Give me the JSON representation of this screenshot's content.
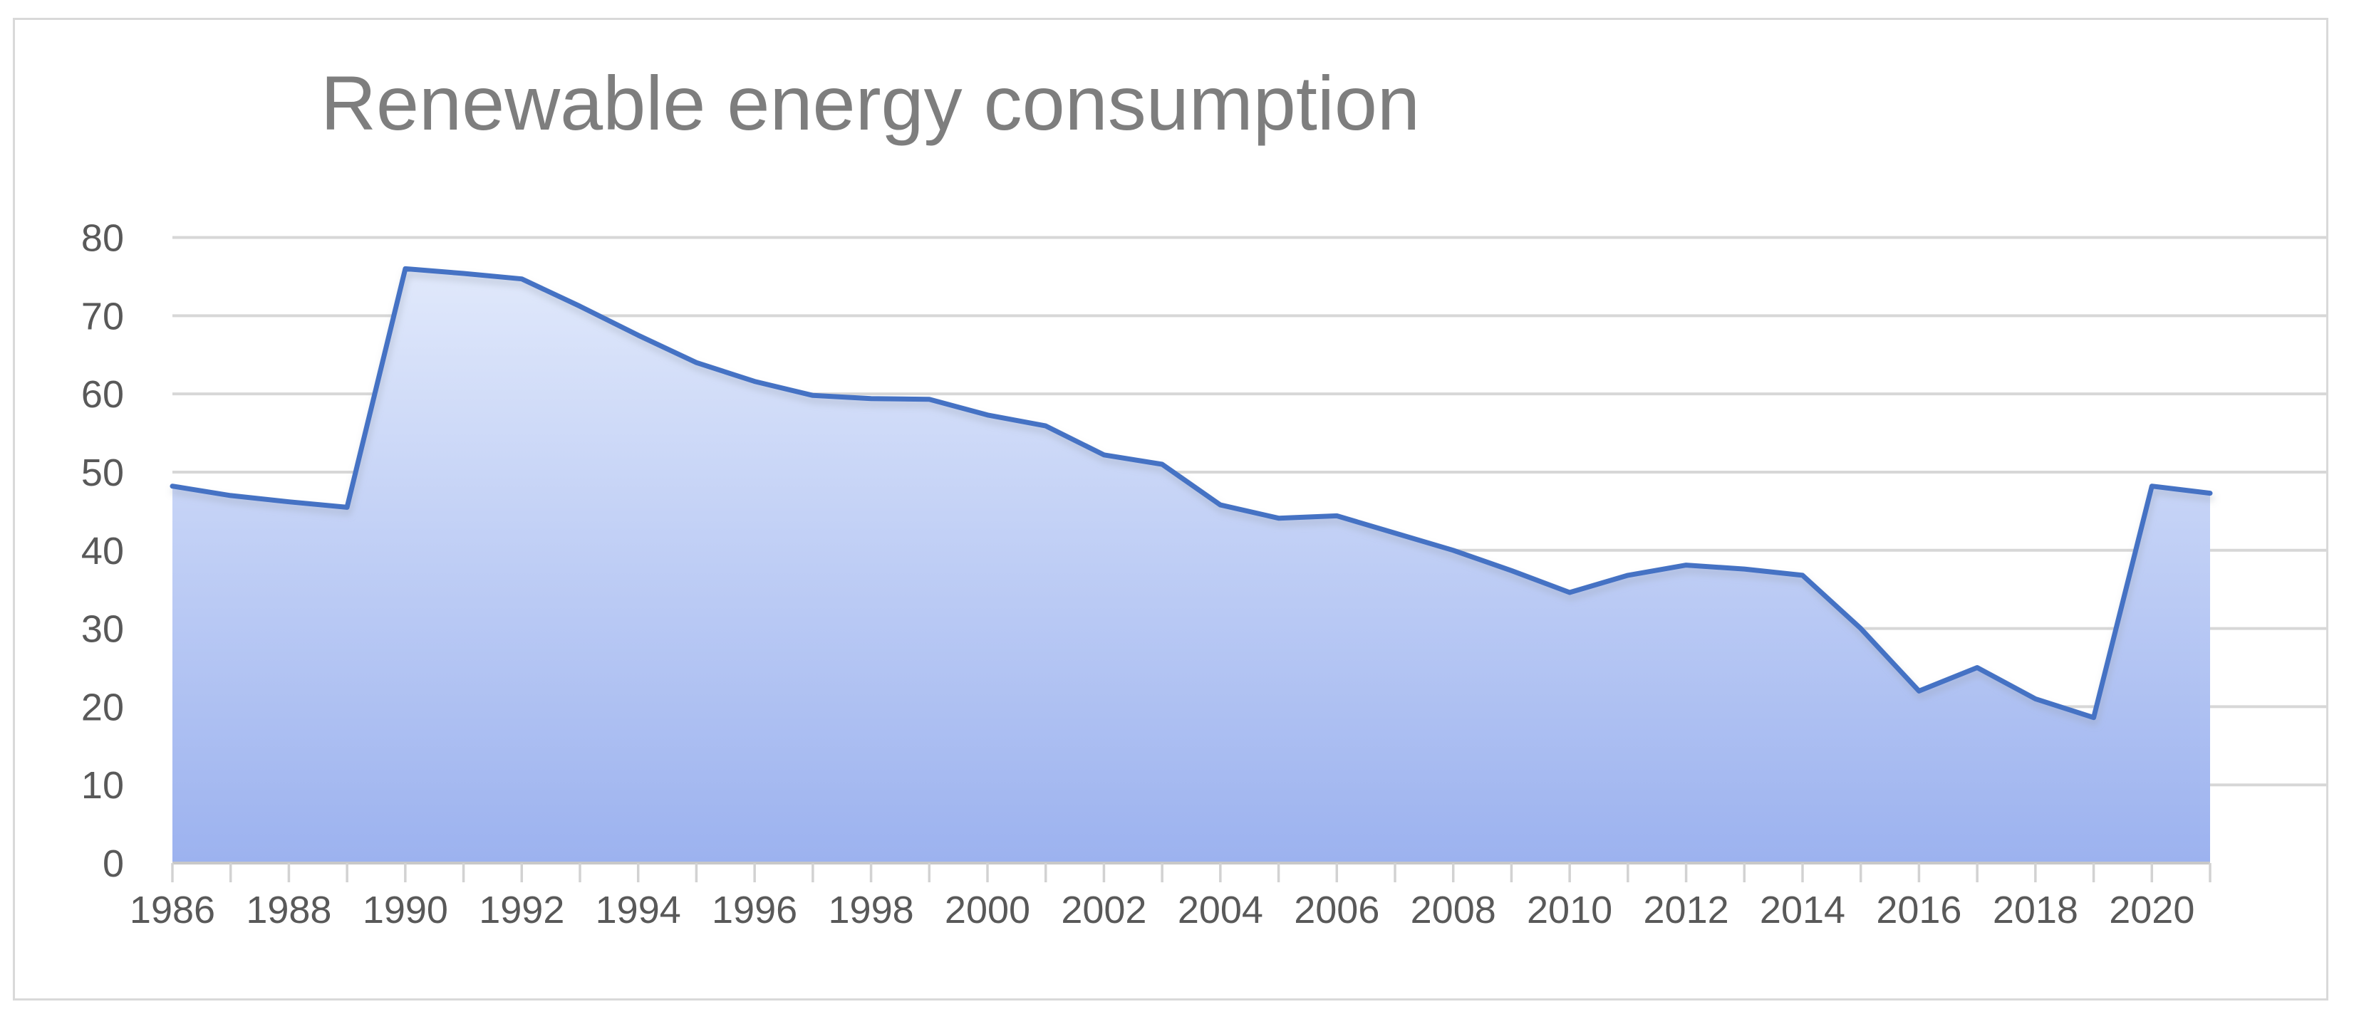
{
  "chart_data": {
    "type": "area",
    "title": "Renewable energy consumption",
    "x": [
      1986,
      1987,
      1988,
      1989,
      1990,
      1991,
      1992,
      1993,
      1994,
      1995,
      1996,
      1997,
      1998,
      1999,
      2000,
      2001,
      2002,
      2003,
      2004,
      2005,
      2006,
      2007,
      2008,
      2009,
      2010,
      2011,
      2012,
      2013,
      2014,
      2015,
      2016,
      2017,
      2018,
      2019,
      2020,
      2021
    ],
    "values": [
      48.2,
      47.0,
      46.2,
      45.5,
      76.0,
      75.4,
      74.7,
      71.2,
      67.5,
      64.0,
      61.6,
      59.8,
      59.4,
      59.3,
      57.3,
      55.9,
      52.2,
      51.0,
      45.8,
      44.1,
      44.4,
      42.2,
      40.0,
      37.4,
      34.6,
      36.8,
      38.1,
      37.6,
      36.8,
      30.0,
      22.0,
      25.0,
      21.0,
      18.6,
      48.2,
      47.3
    ],
    "xlabel": "",
    "ylabel": "",
    "ylim": [
      0,
      80
    ],
    "ytick_labels": [
      "0",
      "10",
      "20",
      "30",
      "40",
      "50",
      "60",
      "70",
      "80"
    ],
    "xtick_labels": [
      "1986",
      "1988",
      "1990",
      "1992",
      "1994",
      "1996",
      "1998",
      "2000",
      "2002",
      "2004",
      "2006",
      "2008",
      "2010",
      "2012",
      "2014",
      "2016",
      "2018",
      "2020"
    ],
    "grid": true,
    "legend_position": "none",
    "colors": {
      "line": "#4472C4",
      "area_top": "#e1e9fb",
      "area_bottom": "#9cb2ef",
      "gridline": "#d7d7d7",
      "axis_line": "#c8c8c8",
      "tick": "#d2d2d2",
      "axis_label": "#595959",
      "title": "#7e7e7e",
      "border": "#d9d9d9"
    }
  }
}
